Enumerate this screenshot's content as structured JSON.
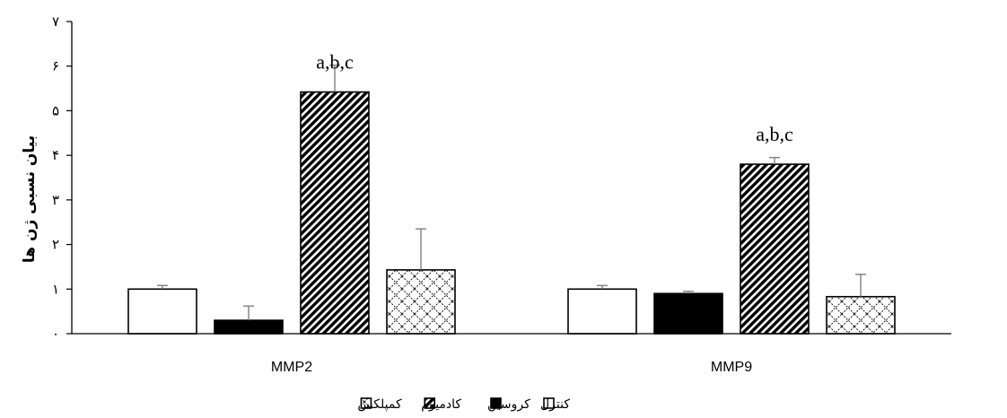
{
  "chart_data": {
    "type": "bar",
    "categories": [
      "MMP2",
      "MMP9"
    ],
    "series": [
      {
        "name": "کنترل",
        "values": [
          1.0,
          1.0
        ],
        "errors": [
          0.08,
          0.08
        ],
        "fill": "white"
      },
      {
        "name": "کروسین",
        "values": [
          0.3,
          0.9
        ],
        "errors": [
          0.32,
          0.05
        ],
        "fill": "black"
      },
      {
        "name": "کادمیوم",
        "values": [
          5.42,
          3.8
        ],
        "errors": [
          0.6,
          0.15
        ],
        "fill": "diagonal-hatch"
      },
      {
        "name": "کمپلکس",
        "values": [
          1.43,
          0.83
        ],
        "errors": [
          0.92,
          0.5
        ],
        "fill": "crosshatch"
      }
    ],
    "annotations": [
      {
        "category": "MMP2",
        "series": "کادمیوم",
        "text": "a,b,c"
      },
      {
        "category": "MMP9",
        "series": "کادمیوم",
        "text": "a,b,c"
      }
    ],
    "ylabel": "بیان نسبی ژن ها",
    "yticks": [
      "۰",
      "۱",
      "۲",
      "۳",
      "۴",
      "۵",
      "۶",
      "۷"
    ],
    "ylim": [
      0,
      7
    ],
    "grid": false,
    "legend_position": "bottom",
    "colors": {
      "axis": "#000000",
      "error_bar": "#7f7f7f",
      "bar_outline": "#000000"
    }
  }
}
